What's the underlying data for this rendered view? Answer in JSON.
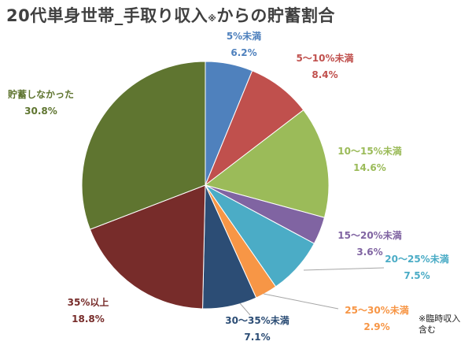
{
  "title": {
    "main": "20代単身世帯_手取り収入",
    "mark": "※",
    "rest": "からの貯蓄割合"
  },
  "footnote": "※臨時収入含む",
  "chart_data": {
    "type": "pie",
    "start_angle_deg": 0,
    "direction": "clockwise",
    "slices": [
      {
        "label": "5%未満",
        "value": 6.2,
        "value_label": "6.2%",
        "color": "#4f81bd"
      },
      {
        "label": "5〜10%未満",
        "value": 8.4,
        "value_label": "8.4%",
        "color": "#c0504d"
      },
      {
        "label": "10〜15%未満",
        "value": 14.6,
        "value_label": "14.6%",
        "color": "#9bbb59"
      },
      {
        "label": "15〜20%未満",
        "value": 3.6,
        "value_label": "3.6%",
        "color": "#8064a2"
      },
      {
        "label": "20〜25%未満",
        "value": 7.5,
        "value_label": "7.5%",
        "color": "#4bacc6"
      },
      {
        "label": "25〜30%未満",
        "value": 2.9,
        "value_label": "2.9%",
        "color": "#f79646"
      },
      {
        "label": "30〜35%未満",
        "value": 7.1,
        "value_label": "7.1%",
        "color": "#2c4d75"
      },
      {
        "label": "35%以上",
        "value": 18.8,
        "value_label": "18.8%",
        "color": "#772c2a"
      },
      {
        "label": "貯蓄しなかった",
        "value": 30.8,
        "value_label": "30.8%",
        "color": "#5f7530"
      }
    ]
  }
}
